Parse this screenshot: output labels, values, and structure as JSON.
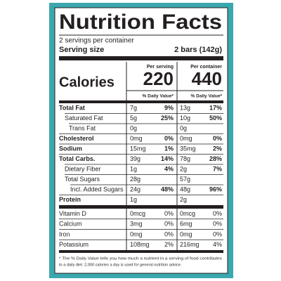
{
  "title": "Nutrition Facts",
  "servings": "2 servings per container",
  "serving_size_label": "Serving size",
  "serving_size": "2 bars (142g)",
  "calories_label": "Calories",
  "per_serving": {
    "header": "Per serving",
    "calories": "220",
    "dv_header": "% Daily Value*"
  },
  "per_container": {
    "header": "Per container",
    "calories": "440",
    "dv_header": "% Daily Value*"
  },
  "rows": [
    {
      "name": "Total Fat",
      "serving_amount": "7g",
      "serving_dv": "9%",
      "container_amount": "13g",
      "container_dv": "17%"
    },
    {
      "name": "Saturated Fat",
      "serving_amount": "5g",
      "serving_dv": "25%",
      "container_amount": "10g",
      "container_dv": "50%"
    },
    {
      "name": "Trans Fat",
      "serving_amount": "0g",
      "container_amount": "0g"
    },
    {
      "name": "Cholesterol",
      "serving_amount": "0mg",
      "serving_dv": "0%",
      "container_amount": "0mg",
      "container_dv": "0%"
    },
    {
      "name": "Sodium",
      "serving_amount": "15mg",
      "serving_dv": "1%",
      "container_amount": "35mg",
      "container_dv": "2%"
    },
    {
      "name": "Total Carbs.",
      "serving_amount": "39g",
      "serving_dv": "14%",
      "container_amount": "78g",
      "container_dv": "28%"
    },
    {
      "name": "Dietary Fiber",
      "serving_amount": "1g",
      "serving_dv": "4%",
      "container_amount": "2g",
      "container_dv": "7%"
    },
    {
      "name": "Total Sugars",
      "serving_amount": "28g",
      "container_amount": "57g"
    },
    {
      "name": "Incl. Added Sugars",
      "serving_amount": "24g",
      "serving_dv": "48%",
      "container_amount": "48g",
      "container_dv": "96%"
    },
    {
      "name": "Protein",
      "serving_amount": "1g",
      "container_amount": "2g"
    }
  ],
  "vitamins": [
    {
      "name": "Vitamin D",
      "serving_amount": "0mcg",
      "serving_dv": "0%",
      "container_amount": "0mcg",
      "container_dv": "0%"
    },
    {
      "name": "Calcium",
      "serving_amount": "3mg",
      "serving_dv": "0%",
      "container_amount": "6mg",
      "container_dv": "0%"
    },
    {
      "name": "Iron",
      "serving_amount": "0mg",
      "serving_dv": "0%",
      "container_amount": "0mg",
      "container_dv": "0%"
    },
    {
      "name": "Potassium",
      "serving_amount": "108mg",
      "serving_dv": "2%",
      "container_amount": "216mg",
      "container_dv": "4%"
    }
  ],
  "footnote": [
    "* The % Daily Value tells you how much a nutrient in a serving of food contributes",
    "to a daily diet. 2,000 calories a day is used for general nutrition advice."
  ]
}
